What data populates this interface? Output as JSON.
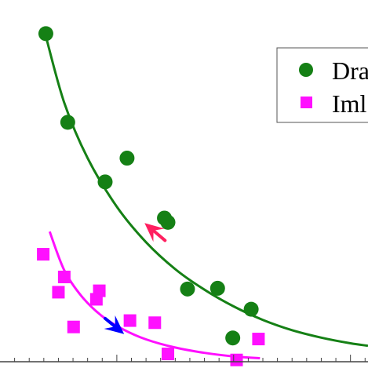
{
  "chart_data": {
    "type": "scatter",
    "title": "",
    "xlabel": "",
    "ylabel": "",
    "xlim": [
      0,
      12.6
    ],
    "ylim": [
      0,
      10
    ],
    "grid": false,
    "legend_position": "top-right",
    "series": [
      {
        "name": "Dra",
        "marker": "circle",
        "color": "#158015",
        "points": [
          [
            1.57,
            9.25
          ],
          [
            2.32,
            6.75
          ],
          [
            3.6,
            5.07
          ],
          [
            4.35,
            5.74
          ],
          [
            5.63,
            4.05
          ],
          [
            5.75,
            3.93
          ],
          [
            6.42,
            2.05
          ],
          [
            7.45,
            2.07
          ],
          [
            8.6,
            1.48
          ],
          [
            7.97,
            0.67
          ]
        ],
        "fit": [
          [
            1.57,
            9.18
          ],
          [
            2.2,
            7.3
          ],
          [
            3.0,
            5.74
          ],
          [
            4.0,
            4.37
          ],
          [
            5.0,
            3.37
          ],
          [
            6.0,
            2.61
          ],
          [
            7.0,
            2.03
          ],
          [
            8.0,
            1.56
          ],
          [
            9.0,
            1.18
          ],
          [
            10.0,
            0.89
          ],
          [
            11.0,
            0.68
          ],
          [
            12.0,
            0.52
          ],
          [
            12.6,
            0.45
          ]
        ]
      },
      {
        "name": "Iml",
        "marker": "square",
        "color": "#ff10ff",
        "points": [
          [
            1.48,
            3.03
          ],
          [
            2.2,
            2.39
          ],
          [
            2.0,
            1.96
          ],
          [
            3.4,
            2.0
          ],
          [
            3.3,
            1.76
          ],
          [
            4.45,
            1.16
          ],
          [
            5.3,
            1.1
          ],
          [
            2.52,
            0.98
          ],
          [
            5.75,
            0.22
          ],
          [
            8.1,
            0.05
          ],
          [
            8.85,
            0.64
          ]
        ],
        "fit": [
          [
            1.7,
            3.67
          ],
          [
            2.2,
            2.58
          ],
          [
            2.8,
            1.84
          ],
          [
            3.5,
            1.28
          ],
          [
            4.2,
            0.92
          ],
          [
            5.0,
            0.63
          ],
          [
            6.0,
            0.4
          ],
          [
            7.0,
            0.25
          ],
          [
            8.0,
            0.15
          ],
          [
            8.9,
            0.1
          ]
        ]
      }
    ],
    "arrows": [
      {
        "color": "#ff2060",
        "from": [
          5.65,
          3.42
        ],
        "to": [
          4.95,
          3.91
        ]
      },
      {
        "color": "#0000ff",
        "from": [
          3.6,
          1.22
        ],
        "to": [
          4.25,
          0.78
        ]
      }
    ],
    "axis_color": "#444444"
  }
}
